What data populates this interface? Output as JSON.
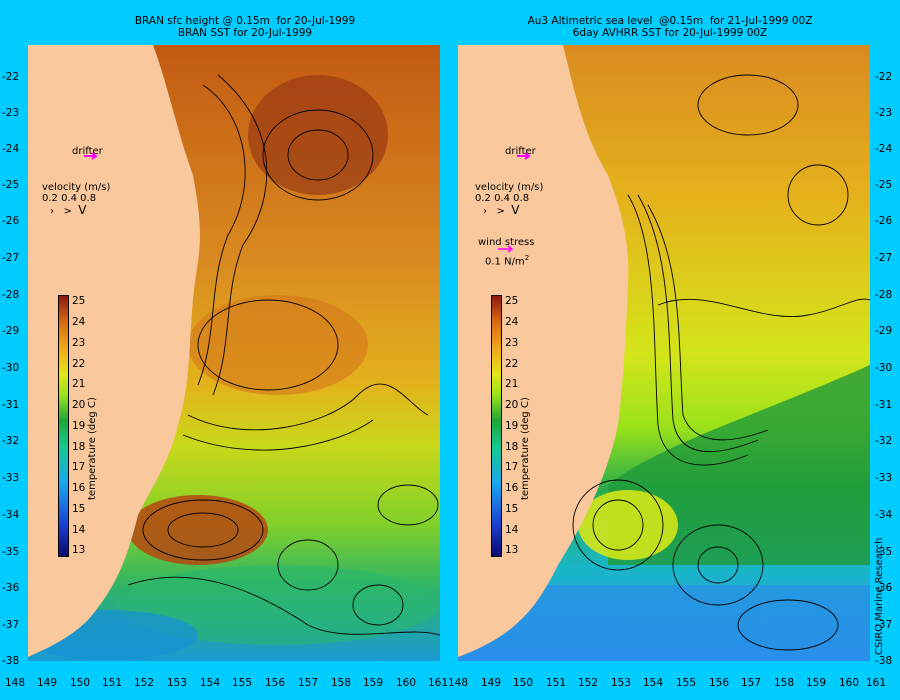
{
  "left_panel": {
    "title_line1": "BRAN sfc height @ 0.15m  for 20-Jul-1999",
    "title_line2": "BRAN SST for 20-Jul-1999",
    "drifter_label": "drifter",
    "velocity_label": "velocity (m/s)",
    "velocity_values": "0.2 0.4 0.8"
  },
  "right_panel": {
    "title_line1": "Au3 Altimetric sea level  @0.15m  for 21-Jul-1999 00Z",
    "title_line2": "6day AVHRR SST for 20-Jul-1999 00Z",
    "drifter_label": "drifter",
    "velocity_label": "velocity (m/s)",
    "velocity_values": "0.2 0.4 0.8",
    "wind_label": "wind stress",
    "wind_value": "0.1 N/m",
    "wind_exp": "2"
  },
  "colorbar": {
    "title": "temperature (deg C)",
    "ticks": [
      "25",
      "24",
      "23",
      "22",
      "21",
      "20",
      "19",
      "18",
      "17",
      "16",
      "15",
      "14",
      "13"
    ]
  },
  "lat_ticks": [
    "-22",
    "-23",
    "-24",
    "-25",
    "-26",
    "-27",
    "-28",
    "-29",
    "-30",
    "-31",
    "-32",
    "-33",
    "-34",
    "-35",
    "-36",
    "-37",
    "-38"
  ],
  "lon_ticks": [
    "148",
    "149",
    "150",
    "151",
    "152",
    "153",
    "154",
    "155",
    "156",
    "157",
    "158",
    "159",
    "160",
    "161"
  ],
  "credit": "CSIRO Marine Research",
  "colors": {
    "background": "#00ccff",
    "land": "#f9c89c",
    "drifter": "#ff00ff"
  }
}
